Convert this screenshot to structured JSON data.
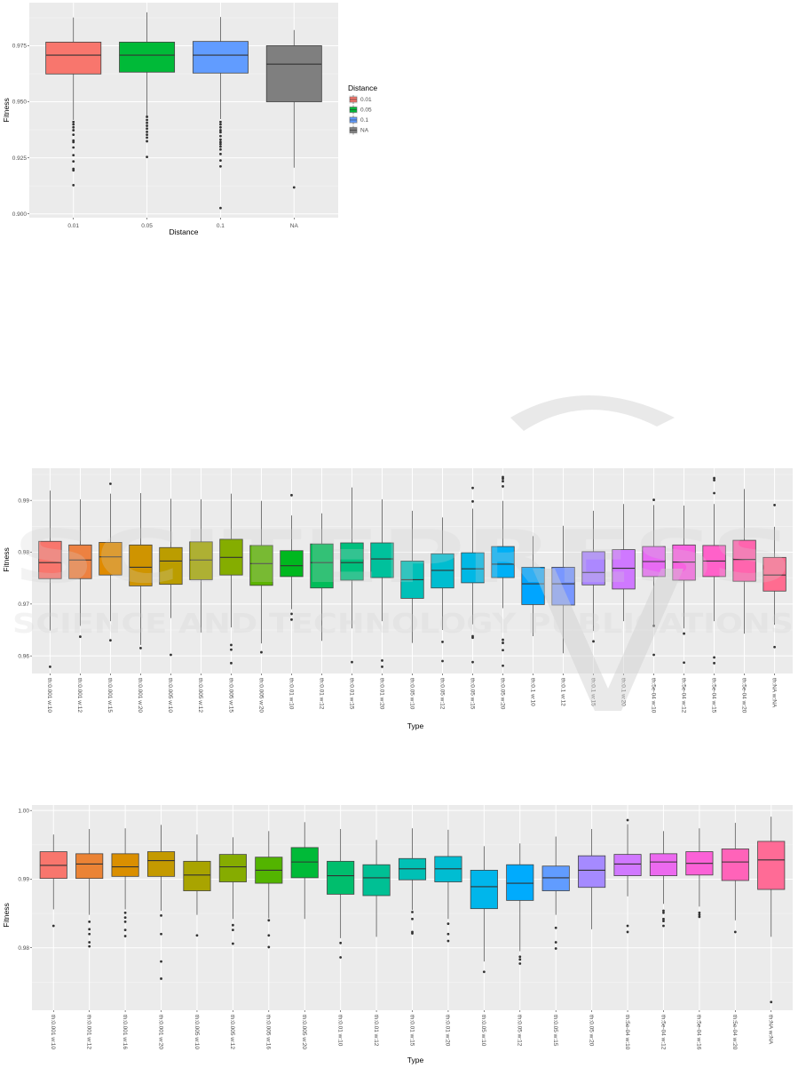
{
  "watermark": {
    "logo_text": "SCITEPRESS",
    "tagline": "SCIENCE AND TECHNOLOGY PUBLICATIONS"
  },
  "chart_data": [
    {
      "type": "boxplot",
      "xlabel": "Distance",
      "ylabel": "Fitness",
      "ylim": [
        0.8983,
        0.9942
      ],
      "yticks": [
        0.9,
        0.925,
        0.95,
        0.975
      ],
      "ytick_labels": [
        "0.900",
        "0.925",
        "0.950",
        "0.975"
      ],
      "grid": true,
      "legend": {
        "title": "Distance",
        "placement": "right",
        "entries": [
          "0.01",
          "0.05",
          "0.1",
          "NA"
        ]
      },
      "colors": [
        "#F8766D",
        "#00BA38",
        "#619CFF",
        "#7F7F7F"
      ],
      "categories": [
        "0.01",
        "0.05",
        "0.1",
        "NA"
      ],
      "boxes": [
        {
          "lo": 0.9419,
          "q1": 0.9624,
          "med": 0.9708,
          "q3": 0.9766,
          "hi": 0.9876,
          "out": [
            0.941,
            0.9399,
            0.9386,
            0.9373,
            0.9353,
            0.9327,
            0.932,
            0.9296,
            0.9262,
            0.9234,
            0.9201,
            0.9194,
            0.9128
          ]
        },
        {
          "lo": 0.9437,
          "q1": 0.9632,
          "med": 0.9708,
          "q3": 0.9766,
          "hi": 0.9899,
          "out": [
            0.9433,
            0.9419,
            0.9406,
            0.9393,
            0.938,
            0.9366,
            0.9353,
            0.934,
            0.9324,
            0.9254
          ]
        },
        {
          "lo": 0.9423,
          "q1": 0.9628,
          "med": 0.9708,
          "q3": 0.9769,
          "hi": 0.9878,
          "out": [
            0.941,
            0.9399,
            0.9386,
            0.9373,
            0.9364,
            0.9347,
            0.9331,
            0.932,
            0.9311,
            0.93,
            0.9287,
            0.9267,
            0.9238,
            0.9212,
            0.9026
          ]
        },
        {
          "lo": 0.9206,
          "q1": 0.95,
          "med": 0.9668,
          "q3": 0.975,
          "hi": 0.982,
          "out": [
            0.9118
          ]
        }
      ]
    },
    {
      "type": "boxplot",
      "xlabel": "Type",
      "ylabel": "Fitness",
      "ylim": [
        0.9566,
        0.9962
      ],
      "yticks": [
        0.96,
        0.97,
        0.98,
        0.99
      ],
      "ytick_labels": [
        "0.96",
        "0.97",
        "0.98",
        "0.99"
      ],
      "grid": true,
      "palette": "hue",
      "categories": [
        "th:0.001 w:10",
        "th:0.001 w:12",
        "th:0.001 w:15",
        "th:0.001 w:20",
        "th:0.005 w:10",
        "th:0.005 w:12",
        "th:0.005 w:15",
        "th:0.005 w:20",
        "th:0.01 w:10",
        "th:0.01 w:12",
        "th:0.01 w:15",
        "th:0.01 w:20",
        "th:0.05 w:10",
        "th:0.05 w:12",
        "th:0.05 w:15",
        "th:0.05 w:20",
        "th:0.1 w:10",
        "th:0.1 w:12",
        "th:0.1 w:15",
        "th:0.1 w:20",
        "th:5e-04 w:10",
        "th:5e-04 w:12",
        "th:5e-04 w:15",
        "th:5e-04 w:20",
        "th:NA w:NA"
      ],
      "boxes": [
        {
          "lo": 0.9649,
          "q1": 0.9749,
          "med": 0.978,
          "q3": 0.9821,
          "hi": 0.9919,
          "out": [
            0.9579
          ]
        },
        {
          "lo": 0.9658,
          "q1": 0.9749,
          "med": 0.9785,
          "q3": 0.9814,
          "hi": 0.9902,
          "out": [
            0.9637
          ]
        },
        {
          "lo": 0.9667,
          "q1": 0.9756,
          "med": 0.9791,
          "q3": 0.9819,
          "hi": 0.9913,
          "out": [
            0.9932,
            0.963
          ]
        },
        {
          "lo": 0.9621,
          "q1": 0.9735,
          "med": 0.9771,
          "q3": 0.9814,
          "hi": 0.9914,
          "out": [
            0.9615
          ]
        },
        {
          "lo": 0.9673,
          "q1": 0.9738,
          "med": 0.9783,
          "q3": 0.9809,
          "hi": 0.9903,
          "out": [
            0.9602
          ]
        },
        {
          "lo": 0.9645,
          "q1": 0.9747,
          "med": 0.9785,
          "q3": 0.982,
          "hi": 0.9902,
          "out": []
        },
        {
          "lo": 0.9655,
          "q1": 0.9756,
          "med": 0.979,
          "q3": 0.9825,
          "hi": 0.9913,
          "out": [
            0.9621,
            0.9612,
            0.9586
          ]
        },
        {
          "lo": 0.9624,
          "q1": 0.9736,
          "med": 0.9778,
          "q3": 0.9813,
          "hi": 0.9899,
          "out": [
            0.9607
          ]
        },
        {
          "lo": 0.969,
          "q1": 0.9753,
          "med": 0.9774,
          "q3": 0.9803,
          "hi": 0.9871,
          "out": [
            0.991,
            0.9681,
            0.967
          ]
        },
        {
          "lo": 0.9629,
          "q1": 0.9731,
          "med": 0.978,
          "q3": 0.9816,
          "hi": 0.9875,
          "out": []
        },
        {
          "lo": 0.9653,
          "q1": 0.9746,
          "med": 0.978,
          "q3": 0.9818,
          "hi": 0.9925,
          "out": [
            0.9588
          ]
        },
        {
          "lo": 0.9667,
          "q1": 0.9751,
          "med": 0.9787,
          "q3": 0.9818,
          "hi": 0.9902,
          "out": [
            0.9591,
            0.9579
          ]
        },
        {
          "lo": 0.9625,
          "q1": 0.9711,
          "med": 0.9747,
          "q3": 0.9783,
          "hi": 0.988,
          "out": []
        },
        {
          "lo": 0.965,
          "q1": 0.9731,
          "med": 0.9765,
          "q3": 0.9797,
          "hi": 0.9867,
          "out": [
            0.9627,
            0.959
          ]
        },
        {
          "lo": 0.9661,
          "q1": 0.9741,
          "med": 0.9768,
          "q3": 0.9799,
          "hi": 0.9884,
          "out": [
            0.9924,
            0.9898,
            0.9638,
            0.9635,
            0.9588
          ]
        },
        {
          "lo": 0.9692,
          "q1": 0.9751,
          "med": 0.9777,
          "q3": 0.9811,
          "hi": 0.9899,
          "out": [
            0.9945,
            0.9942,
            0.9937,
            0.9927,
            0.9631,
            0.9625,
            0.9611,
            0.9581
          ]
        },
        {
          "lo": 0.9638,
          "q1": 0.9699,
          "med": 0.9739,
          "q3": 0.9771,
          "hi": 0.9831,
          "out": []
        },
        {
          "lo": 0.9605,
          "q1": 0.9698,
          "med": 0.9739,
          "q3": 0.9771,
          "hi": 0.9851,
          "out": []
        },
        {
          "lo": 0.9648,
          "q1": 0.9737,
          "med": 0.9761,
          "q3": 0.9801,
          "hi": 0.988,
          "out": [
            0.9628
          ]
        },
        {
          "lo": 0.9667,
          "q1": 0.9729,
          "med": 0.9769,
          "q3": 0.9805,
          "hi": 0.9893,
          "out": []
        },
        {
          "lo": 0.9659,
          "q1": 0.9753,
          "med": 0.9782,
          "q3": 0.9811,
          "hi": 0.9891,
          "out": [
            0.9901,
            0.9658,
            0.9602
          ]
        },
        {
          "lo": 0.9653,
          "q1": 0.9746,
          "med": 0.9781,
          "q3": 0.9814,
          "hi": 0.989,
          "out": [
            0.9643,
            0.9587
          ]
        },
        {
          "lo": 0.9667,
          "q1": 0.9753,
          "med": 0.9783,
          "q3": 0.9813,
          "hi": 0.9893,
          "out": [
            0.9943,
            0.9939,
            0.9914,
            0.9597,
            0.9586
          ]
        },
        {
          "lo": 0.9643,
          "q1": 0.9744,
          "med": 0.9786,
          "q3": 0.9823,
          "hi": 0.9922,
          "out": []
        },
        {
          "lo": 0.966,
          "q1": 0.9725,
          "med": 0.9756,
          "q3": 0.979,
          "hi": 0.9849,
          "out": [
            0.9891,
            0.9617
          ]
        }
      ]
    },
    {
      "type": "boxplot",
      "xlabel": "Type",
      "ylabel": "Fitness",
      "ylim": [
        0.9709,
        1.0008
      ],
      "yticks": [
        0.98,
        0.99,
        1.0
      ],
      "ytick_labels": [
        "0.98",
        "0.99",
        "1.00"
      ],
      "grid": true,
      "palette": "hue",
      "categories": [
        "th:0.001 w:10",
        "th:0.001 w:12",
        "th:0.001 w:16",
        "th:0.001 w:20",
        "th:0.005 w:10",
        "th:0.005 w:12",
        "th:0.005 w:16",
        "th:0.005 w:20",
        "th:0.01 w:10",
        "th:0.01 w:12",
        "th:0.01 w:15",
        "th:0.01 w:20",
        "th:0.05 w:10",
        "th:0.05 w:12",
        "th:0.05 w:15",
        "th:0.05 w:20",
        "th:5e-04 w:10",
        "th:5e-04 w:12",
        "th:5e-04 w:16",
        "th:5e-04 w:20",
        "th:NA w:NA"
      ],
      "boxes": [
        {
          "lo": 0.9856,
          "q1": 0.9901,
          "med": 0.992,
          "q3": 0.994,
          "hi": 0.9965,
          "out": [
            0.9832
          ]
        },
        {
          "lo": 0.9848,
          "q1": 0.9901,
          "med": 0.9922,
          "q3": 0.9937,
          "hi": 0.9973,
          "out": [
            0.9838,
            0.9827,
            0.982,
            0.9808,
            0.9802
          ]
        },
        {
          "lo": 0.9856,
          "q1": 0.9904,
          "med": 0.9918,
          "q3": 0.9937,
          "hi": 0.9974,
          "out": [
            0.9851,
            0.9844,
            0.9838,
            0.9826,
            0.9817
          ]
        },
        {
          "lo": 0.9854,
          "q1": 0.9904,
          "med": 0.9927,
          "q3": 0.994,
          "hi": 0.9979,
          "out": [
            0.9847,
            0.982,
            0.978,
            0.9755
          ]
        },
        {
          "lo": 0.9848,
          "q1": 0.9883,
          "med": 0.9906,
          "q3": 0.9926,
          "hi": 0.9965,
          "out": [
            0.9818
          ]
        },
        {
          "lo": 0.9842,
          "q1": 0.9896,
          "med": 0.9918,
          "q3": 0.9936,
          "hi": 0.9961,
          "out": [
            0.9833,
            0.9826,
            0.9806
          ]
        },
        {
          "lo": 0.9843,
          "q1": 0.9894,
          "med": 0.9913,
          "q3": 0.9932,
          "hi": 0.997,
          "out": [
            0.984,
            0.9818,
            0.9801
          ]
        },
        {
          "lo": 0.9842,
          "q1": 0.9902,
          "med": 0.9925,
          "q3": 0.9946,
          "hi": 0.9983,
          "out": []
        },
        {
          "lo": 0.9814,
          "q1": 0.9878,
          "med": 0.9905,
          "q3": 0.9926,
          "hi": 0.9973,
          "out": [
            0.9807,
            0.9786
          ]
        },
        {
          "lo": 0.9816,
          "q1": 0.9876,
          "med": 0.9902,
          "q3": 0.9921,
          "hi": 0.9957,
          "out": []
        },
        {
          "lo": 0.9855,
          "q1": 0.9899,
          "med": 0.9915,
          "q3": 0.993,
          "hi": 0.9974,
          "out": [
            0.9852,
            0.9842,
            0.9823,
            0.9821
          ]
        },
        {
          "lo": 0.9842,
          "q1": 0.9896,
          "med": 0.9915,
          "q3": 0.9933,
          "hi": 0.9972,
          "out": [
            0.9835,
            0.982,
            0.981
          ]
        },
        {
          "lo": 0.978,
          "q1": 0.9857,
          "med": 0.9889,
          "q3": 0.9913,
          "hi": 0.9948,
          "out": [
            0.9765
          ]
        },
        {
          "lo": 0.9795,
          "q1": 0.9869,
          "med": 0.9894,
          "q3": 0.9921,
          "hi": 0.9952,
          "out": [
            0.9787,
            0.9783,
            0.9777
          ]
        },
        {
          "lo": 0.9848,
          "q1": 0.9883,
          "med": 0.9902,
          "q3": 0.9919,
          "hi": 0.9962,
          "out": [
            0.9829,
            0.9808,
            0.9799
          ]
        },
        {
          "lo": 0.9827,
          "q1": 0.9888,
          "med": 0.9913,
          "q3": 0.9934,
          "hi": 0.9973,
          "out": []
        },
        {
          "lo": 0.9875,
          "q1": 0.9905,
          "med": 0.9922,
          "q3": 0.9936,
          "hi": 0.998,
          "out": [
            0.9986,
            0.9832,
            0.9823
          ]
        },
        {
          "lo": 0.9864,
          "q1": 0.9905,
          "med": 0.9925,
          "q3": 0.9937,
          "hi": 0.997,
          "out": [
            0.9854,
            0.9851,
            0.9842,
            0.9839,
            0.9832
          ]
        },
        {
          "lo": 0.986,
          "q1": 0.9906,
          "med": 0.9923,
          "q3": 0.994,
          "hi": 0.9974,
          "out": [
            0.9851,
            0.9848,
            0.9845
          ]
        },
        {
          "lo": 0.984,
          "q1": 0.9898,
          "med": 0.9925,
          "q3": 0.9944,
          "hi": 0.9982,
          "out": [
            0.9823
          ]
        },
        {
          "lo": 0.9816,
          "q1": 0.9885,
          "med": 0.9928,
          "q3": 0.9955,
          "hi": 0.9991,
          "out": [
            0.9721
          ]
        }
      ]
    }
  ]
}
